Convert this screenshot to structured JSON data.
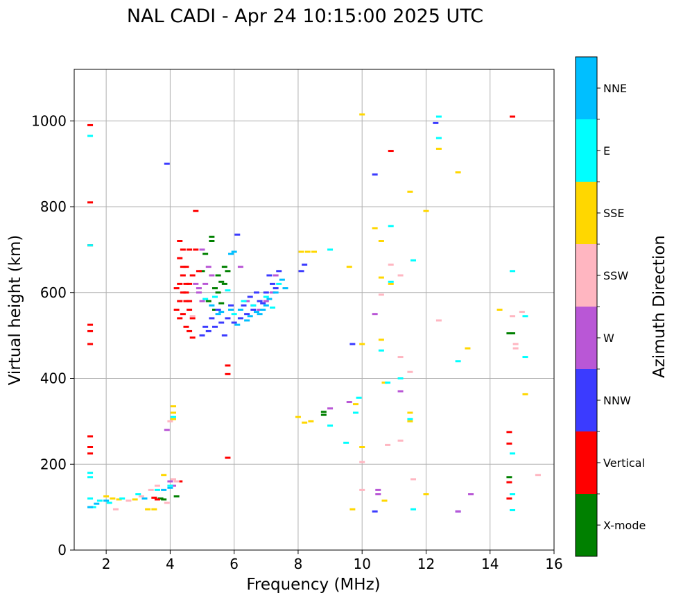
{
  "chart_data": {
    "type": "scatter",
    "title": "NAL CADI - Apr 24 10:15:00 2025 UTC",
    "xlabel": "Frequency (MHz)",
    "ylabel": "Virtual height (km)",
    "xlim": [
      1,
      16
    ],
    "ylim": [
      0,
      1120
    ],
    "xticks": [
      2,
      4,
      6,
      8,
      10,
      12,
      14,
      16
    ],
    "yticks": [
      0,
      200,
      400,
      600,
      800,
      1000
    ],
    "grid": true,
    "colorbar": {
      "label": "Azimuth Direction",
      "categories": [
        "X-mode",
        "Vertical",
        "NNW",
        "W",
        "SSW",
        "SSE",
        "E",
        "NNE"
      ],
      "colors": [
        "#008000",
        "#ff0000",
        "#3b3bff",
        "#b957d6",
        "#ffb6c1",
        "#ffd700",
        "#00ffff",
        "#00bfff"
      ]
    },
    "series": [
      {
        "name": "X-mode",
        "points": [
          [
            3.7,
            120
          ],
          [
            3.8,
            118
          ],
          [
            4.2,
            125
          ],
          [
            5.1,
            690
          ],
          [
            5.3,
            720
          ],
          [
            5.4,
            610
          ],
          [
            5.5,
            640
          ],
          [
            5.6,
            625
          ],
          [
            5.7,
            660
          ],
          [
            5.8,
            650
          ],
          [
            5.2,
            580
          ],
          [
            5.4,
            560
          ],
          [
            5.6,
            575
          ],
          [
            8.8,
            322
          ],
          [
            8.8,
            315
          ],
          [
            14.6,
            505
          ],
          [
            14.6,
            170
          ],
          [
            14.7,
            505
          ],
          [
            5.0,
            650
          ],
          [
            5.5,
            600
          ],
          [
            5.3,
            730
          ],
          [
            5.7,
            620
          ]
        ]
      },
      {
        "name": "Vertical",
        "points": [
          [
            1.5,
            990
          ],
          [
            1.5,
            810
          ],
          [
            1.5,
            710
          ],
          [
            1.5,
            525
          ],
          [
            1.5,
            510
          ],
          [
            1.5,
            480
          ],
          [
            1.5,
            265
          ],
          [
            1.5,
            240
          ],
          [
            1.5,
            225
          ],
          [
            4.3,
            160
          ],
          [
            4.3,
            720
          ],
          [
            4.3,
            680
          ],
          [
            4.4,
            660
          ],
          [
            4.4,
            640
          ],
          [
            4.5,
            620
          ],
          [
            4.5,
            600
          ],
          [
            4.6,
            580
          ],
          [
            4.6,
            560
          ],
          [
            4.7,
            540
          ],
          [
            4.8,
            700
          ],
          [
            4.8,
            790
          ],
          [
            4.9,
            650
          ],
          [
            4.2,
            610
          ],
          [
            4.3,
            580
          ],
          [
            4.4,
            550
          ],
          [
            4.5,
            520
          ],
          [
            4.6,
            510
          ],
          [
            4.7,
            495
          ],
          [
            4.4,
            700
          ],
          [
            4.6,
            700
          ],
          [
            4.3,
            620
          ],
          [
            4.5,
            580
          ],
          [
            4.7,
            640
          ],
          [
            4.6,
            620
          ],
          [
            4.2,
            560
          ],
          [
            4.5,
            660
          ],
          [
            4.4,
            600
          ],
          [
            4.3,
            540
          ],
          [
            5.8,
            430
          ],
          [
            5.8,
            410
          ],
          [
            5.8,
            215
          ],
          [
            10.9,
            930
          ],
          [
            14.7,
            1010
          ],
          [
            14.6,
            275
          ],
          [
            14.6,
            248
          ],
          [
            14.6,
            158
          ],
          [
            14.6,
            120
          ],
          [
            3.6,
            118
          ],
          [
            3.5,
            122
          ]
        ]
      },
      {
        "name": "NNW",
        "points": [
          [
            3.9,
            900
          ],
          [
            5.0,
            500
          ],
          [
            5.2,
            510
          ],
          [
            5.4,
            520
          ],
          [
            5.6,
            530
          ],
          [
            5.8,
            540
          ],
          [
            6.0,
            530
          ],
          [
            6.2,
            540
          ],
          [
            6.4,
            550
          ],
          [
            6.6,
            560
          ],
          [
            6.8,
            580
          ],
          [
            7.0,
            600
          ],
          [
            7.2,
            620
          ],
          [
            7.4,
            650
          ],
          [
            5.3,
            540
          ],
          [
            5.5,
            560
          ],
          [
            5.9,
            570
          ],
          [
            6.3,
            570
          ],
          [
            6.5,
            590
          ],
          [
            6.7,
            600
          ],
          [
            7.1,
            640
          ],
          [
            6.1,
            735
          ],
          [
            8.1,
            650
          ],
          [
            8.2,
            665
          ],
          [
            10.4,
            875
          ],
          [
            10.4,
            90
          ],
          [
            9.7,
            480
          ],
          [
            12.3,
            995
          ],
          [
            13.0,
            90
          ],
          [
            5.1,
            520
          ],
          [
            5.7,
            500
          ],
          [
            6.9,
            575
          ],
          [
            7.3,
            610
          ]
        ]
      },
      {
        "name": "W",
        "points": [
          [
            4.8,
            620
          ],
          [
            4.9,
            600
          ],
          [
            5.0,
            580
          ],
          [
            5.1,
            620
          ],
          [
            5.2,
            660
          ],
          [
            5.0,
            700
          ],
          [
            6.2,
            660
          ],
          [
            6.4,
            580
          ],
          [
            6.6,
            570
          ],
          [
            6.8,
            560
          ],
          [
            7.0,
            580
          ],
          [
            7.2,
            600
          ],
          [
            7.3,
            640
          ],
          [
            9.0,
            330
          ],
          [
            9.6,
            345
          ],
          [
            10.4,
            550
          ],
          [
            10.5,
            140
          ],
          [
            10.5,
            130
          ],
          [
            11.2,
            370
          ],
          [
            13.4,
            130
          ],
          [
            13.0,
            90
          ],
          [
            3.9,
            280
          ],
          [
            4.1,
            150
          ],
          [
            4.0,
            160
          ],
          [
            4.9,
            610
          ],
          [
            5.3,
            640
          ]
        ]
      },
      {
        "name": "SSW",
        "points": [
          [
            2.3,
            95
          ],
          [
            2.7,
            115
          ],
          [
            3.1,
            125
          ],
          [
            3.4,
            140
          ],
          [
            3.6,
            150
          ],
          [
            3.9,
            110
          ],
          [
            4.0,
            300
          ],
          [
            4.1,
            165
          ],
          [
            10.0,
            205
          ],
          [
            10.0,
            140
          ],
          [
            10.6,
            595
          ],
          [
            10.8,
            245
          ],
          [
            10.9,
            665
          ],
          [
            11.2,
            640
          ],
          [
            11.2,
            450
          ],
          [
            11.2,
            255
          ],
          [
            11.5,
            415
          ],
          [
            11.6,
            165
          ],
          [
            12.4,
            535
          ],
          [
            14.7,
            545
          ],
          [
            14.8,
            480
          ],
          [
            14.8,
            470
          ],
          [
            15.0,
            555
          ],
          [
            15.5,
            175
          ],
          [
            4.2,
            160
          ],
          [
            4.7,
            545
          ]
        ]
      },
      {
        "name": "SSE",
        "points": [
          [
            2.0,
            125
          ],
          [
            2.2,
            120
          ],
          [
            2.4,
            118
          ],
          [
            2.9,
            118
          ],
          [
            3.3,
            95
          ],
          [
            3.5,
            95
          ],
          [
            3.8,
            175
          ],
          [
            4.1,
            335
          ],
          [
            4.1,
            320
          ],
          [
            4.1,
            305
          ],
          [
            8.0,
            310
          ],
          [
            8.2,
            297
          ],
          [
            8.4,
            300
          ],
          [
            8.1,
            695
          ],
          [
            8.3,
            695
          ],
          [
            8.5,
            695
          ],
          [
            9.6,
            660
          ],
          [
            9.7,
            95
          ],
          [
            9.8,
            340
          ],
          [
            10.0,
            1015
          ],
          [
            10.0,
            480
          ],
          [
            10.0,
            240
          ],
          [
            10.4,
            750
          ],
          [
            10.6,
            720
          ],
          [
            10.6,
            635
          ],
          [
            10.6,
            490
          ],
          [
            10.7,
            390
          ],
          [
            10.7,
            115
          ],
          [
            10.9,
            620
          ],
          [
            11.5,
            835
          ],
          [
            11.5,
            320
          ],
          [
            11.5,
            300
          ],
          [
            12.0,
            130
          ],
          [
            12.0,
            790
          ],
          [
            12.4,
            935
          ],
          [
            13.0,
            880
          ],
          [
            13.3,
            470
          ],
          [
            14.3,
            560
          ],
          [
            15.1,
            363
          ]
        ]
      },
      {
        "name": "E",
        "points": [
          [
            1.5,
            965
          ],
          [
            1.5,
            710
          ],
          [
            1.5,
            180
          ],
          [
            1.5,
            170
          ],
          [
            1.5,
            120
          ],
          [
            1.6,
            100
          ],
          [
            1.8,
            115
          ],
          [
            2.1,
            110
          ],
          [
            2.5,
            120
          ],
          [
            3.0,
            130
          ],
          [
            3.6,
            140
          ],
          [
            4.0,
            150
          ],
          [
            4.1,
            310
          ],
          [
            5.4,
            590
          ],
          [
            5.8,
            605
          ],
          [
            6.3,
            580
          ],
          [
            6.6,
            570
          ],
          [
            7.0,
            590
          ],
          [
            7.4,
            620
          ],
          [
            9.0,
            700
          ],
          [
            9.0,
            290
          ],
          [
            9.5,
            250
          ],
          [
            9.8,
            320
          ],
          [
            9.9,
            355
          ],
          [
            10.6,
            465
          ],
          [
            10.8,
            390
          ],
          [
            10.9,
            755
          ],
          [
            10.9,
            625
          ],
          [
            11.2,
            400
          ],
          [
            11.5,
            305
          ],
          [
            11.6,
            675
          ],
          [
            11.6,
            95
          ],
          [
            12.4,
            1010
          ],
          [
            12.4,
            960
          ],
          [
            13.0,
            440
          ],
          [
            14.7,
            650
          ],
          [
            14.7,
            225
          ],
          [
            14.7,
            130
          ],
          [
            14.7,
            93
          ],
          [
            15.1,
            545
          ],
          [
            15.1,
            450
          ],
          [
            5.1,
            585
          ],
          [
            6.0,
            550
          ],
          [
            7.2,
            565
          ]
        ]
      },
      {
        "name": "NNE",
        "points": [
          [
            1.5,
            100
          ],
          [
            1.7,
            108
          ],
          [
            2.0,
            115
          ],
          [
            3.2,
            120
          ],
          [
            3.8,
            140
          ],
          [
            4.0,
            145
          ],
          [
            5.3,
            570
          ],
          [
            5.5,
            550
          ],
          [
            5.9,
            560
          ],
          [
            6.2,
            560
          ],
          [
            6.5,
            545
          ],
          [
            6.7,
            555
          ],
          [
            6.9,
            560
          ],
          [
            7.1,
            585
          ],
          [
            7.3,
            600
          ],
          [
            7.5,
            630
          ],
          [
            7.6,
            610
          ],
          [
            6.4,
            535
          ],
          [
            6.8,
            550
          ],
          [
            7.0,
            570
          ],
          [
            5.9,
            690
          ],
          [
            6.0,
            695
          ],
          [
            5.6,
            555
          ],
          [
            6.1,
            525
          ]
        ]
      }
    ]
  }
}
